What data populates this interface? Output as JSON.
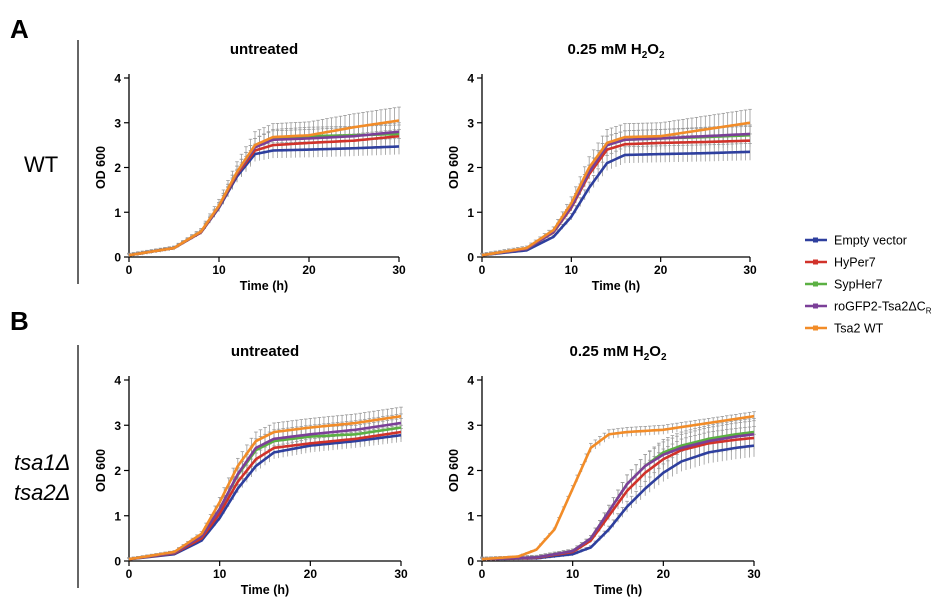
{
  "panel_labels": [
    "A",
    "B"
  ],
  "row_labels": {
    "wt": "WT",
    "tsa_line1": "tsa1Δ",
    "tsa_line2": "tsa2Δ"
  },
  "legend": [
    {
      "label": "Empty vector",
      "color": "#2e3f9e"
    },
    {
      "label": "HyPer7",
      "color": "#d1322a"
    },
    {
      "label": "SypHer7",
      "color": "#5bb043"
    },
    {
      "label": "roGFP2-Tsa2ΔC",
      "sub": "R",
      "color": "#7b3f98"
    },
    {
      "label": "Tsa2 WT",
      "color": "#f28c28"
    }
  ],
  "chart_data": [
    {
      "type": "line",
      "panel": "A",
      "title": "untreated",
      "xlabel": "Time (h)",
      "ylabel": "OD 600",
      "xlim": [
        0,
        30
      ],
      "ylim": [
        0,
        4
      ],
      "xticks": [
        0,
        10,
        20,
        30
      ],
      "yticks": [
        0,
        1,
        2,
        3,
        4
      ],
      "error_bars": true,
      "series": [
        {
          "name": "Empty vector",
          "points": [
            [
              0,
              0.04
            ],
            [
              5,
              0.2
            ],
            [
              8,
              0.55
            ],
            [
              10,
              1.1
            ],
            [
              12,
              1.8
            ],
            [
              14,
              2.3
            ],
            [
              16,
              2.38
            ],
            [
              20,
              2.4
            ],
            [
              25,
              2.43
            ],
            [
              30,
              2.47
            ]
          ],
          "err": 0.18
        },
        {
          "name": "HyPer7",
          "points": [
            [
              0,
              0.04
            ],
            [
              5,
              0.2
            ],
            [
              8,
              0.55
            ],
            [
              10,
              1.12
            ],
            [
              12,
              1.85
            ],
            [
              14,
              2.38
            ],
            [
              16,
              2.5
            ],
            [
              20,
              2.55
            ],
            [
              25,
              2.6
            ],
            [
              30,
              2.7
            ]
          ],
          "err": 0.15
        },
        {
          "name": "SypHer7",
          "points": [
            [
              0,
              0.04
            ],
            [
              5,
              0.2
            ],
            [
              8,
              0.56
            ],
            [
              10,
              1.13
            ],
            [
              12,
              1.88
            ],
            [
              14,
              2.45
            ],
            [
              16,
              2.65
            ],
            [
              20,
              2.7
            ],
            [
              25,
              2.72
            ],
            [
              30,
              2.75
            ]
          ],
          "err": 0.2
        },
        {
          "name": "roGFP2-Tsa2ΔCR",
          "points": [
            [
              0,
              0.04
            ],
            [
              5,
              0.2
            ],
            [
              8,
              0.56
            ],
            [
              10,
              1.13
            ],
            [
              12,
              1.88
            ],
            [
              14,
              2.45
            ],
            [
              16,
              2.62
            ],
            [
              20,
              2.65
            ],
            [
              25,
              2.7
            ],
            [
              30,
              2.8
            ]
          ],
          "err": 0.2
        },
        {
          "name": "Tsa2 WT",
          "points": [
            [
              0,
              0.04
            ],
            [
              5,
              0.2
            ],
            [
              8,
              0.57
            ],
            [
              10,
              1.15
            ],
            [
              12,
              1.9
            ],
            [
              14,
              2.5
            ],
            [
              16,
              2.68
            ],
            [
              20,
              2.72
            ],
            [
              25,
              2.9
            ],
            [
              30,
              3.05
            ]
          ],
          "err": 0.3
        }
      ]
    },
    {
      "type": "line",
      "panel": "A",
      "title": "0.25 mM H2O2",
      "title_parts": {
        "main": "0.25 mM H",
        "sub1": "2",
        "mid": "O",
        "sub2": "2"
      },
      "xlabel": "Time (h)",
      "ylabel": "OD 600",
      "xlim": [
        0,
        30
      ],
      "ylim": [
        0,
        4
      ],
      "xticks": [
        0,
        10,
        20,
        30
      ],
      "yticks": [
        0,
        1,
        2,
        3,
        4
      ],
      "error_bars": true,
      "series": [
        {
          "name": "Empty vector",
          "points": [
            [
              0,
              0.04
            ],
            [
              5,
              0.15
            ],
            [
              8,
              0.45
            ],
            [
              10,
              0.9
            ],
            [
              12,
              1.55
            ],
            [
              14,
              2.1
            ],
            [
              16,
              2.28
            ],
            [
              20,
              2.3
            ],
            [
              25,
              2.32
            ],
            [
              30,
              2.35
            ]
          ],
          "err": 0.2
        },
        {
          "name": "HyPer7",
          "points": [
            [
              0,
              0.04
            ],
            [
              5,
              0.18
            ],
            [
              8,
              0.55
            ],
            [
              10,
              1.1
            ],
            [
              12,
              1.85
            ],
            [
              14,
              2.4
            ],
            [
              16,
              2.52
            ],
            [
              20,
              2.55
            ],
            [
              25,
              2.57
            ],
            [
              30,
              2.6
            ]
          ],
          "err": 0.15
        },
        {
          "name": "SypHer7",
          "points": [
            [
              0,
              0.04
            ],
            [
              5,
              0.18
            ],
            [
              8,
              0.56
            ],
            [
              10,
              1.12
            ],
            [
              12,
              1.9
            ],
            [
              14,
              2.5
            ],
            [
              16,
              2.62
            ],
            [
              20,
              2.65
            ],
            [
              25,
              2.68
            ],
            [
              30,
              2.72
            ]
          ],
          "err": 0.2
        },
        {
          "name": "roGFP2-Tsa2ΔCR",
          "points": [
            [
              0,
              0.04
            ],
            [
              5,
              0.18
            ],
            [
              8,
              0.56
            ],
            [
              10,
              1.12
            ],
            [
              12,
              1.9
            ],
            [
              14,
              2.5
            ],
            [
              16,
              2.62
            ],
            [
              20,
              2.65
            ],
            [
              25,
              2.7
            ],
            [
              30,
              2.75
            ]
          ],
          "err": 0.2
        },
        {
          "name": "Tsa2 WT",
          "points": [
            [
              0,
              0.04
            ],
            [
              5,
              0.2
            ],
            [
              8,
              0.6
            ],
            [
              10,
              1.2
            ],
            [
              12,
              2.0
            ],
            [
              14,
              2.55
            ],
            [
              16,
              2.68
            ],
            [
              20,
              2.7
            ],
            [
              25,
              2.85
            ],
            [
              30,
              3.0
            ]
          ],
          "err": 0.3
        }
      ]
    },
    {
      "type": "line",
      "panel": "B",
      "title": "untreated",
      "xlabel": "Time (h)",
      "ylabel": "OD 600",
      "xlim": [
        0,
        30
      ],
      "ylim": [
        0,
        4
      ],
      "xticks": [
        0,
        10,
        20,
        30
      ],
      "yticks": [
        0,
        1,
        2,
        3,
        4
      ],
      "error_bars": true,
      "series": [
        {
          "name": "Empty vector",
          "points": [
            [
              0,
              0.04
            ],
            [
              5,
              0.15
            ],
            [
              8,
              0.45
            ],
            [
              10,
              0.95
            ],
            [
              12,
              1.6
            ],
            [
              14,
              2.1
            ],
            [
              16,
              2.4
            ],
            [
              20,
              2.55
            ],
            [
              25,
              2.65
            ],
            [
              30,
              2.78
            ]
          ],
          "err": 0.15
        },
        {
          "name": "HyPer7",
          "points": [
            [
              0,
              0.04
            ],
            [
              5,
              0.17
            ],
            [
              8,
              0.5
            ],
            [
              10,
              1.05
            ],
            [
              12,
              1.75
            ],
            [
              14,
              2.25
            ],
            [
              16,
              2.5
            ],
            [
              20,
              2.6
            ],
            [
              25,
              2.7
            ],
            [
              30,
              2.85
            ]
          ],
          "err": 0.15
        },
        {
          "name": "SypHer7",
          "points": [
            [
              0,
              0.04
            ],
            [
              5,
              0.18
            ],
            [
              8,
              0.55
            ],
            [
              10,
              1.15
            ],
            [
              12,
              1.9
            ],
            [
              14,
              2.45
            ],
            [
              16,
              2.65
            ],
            [
              20,
              2.75
            ],
            [
              25,
              2.8
            ],
            [
              30,
              2.95
            ]
          ],
          "err": 0.2
        },
        {
          "name": "roGFP2-Tsa2ΔCR",
          "points": [
            [
              0,
              0.04
            ],
            [
              5,
              0.18
            ],
            [
              8,
              0.55
            ],
            [
              10,
              1.15
            ],
            [
              12,
              1.92
            ],
            [
              14,
              2.5
            ],
            [
              16,
              2.7
            ],
            [
              20,
              2.8
            ],
            [
              25,
              2.9
            ],
            [
              30,
              3.05
            ]
          ],
          "err": 0.2
        },
        {
          "name": "Tsa2 WT",
          "points": [
            [
              0,
              0.04
            ],
            [
              5,
              0.2
            ],
            [
              8,
              0.6
            ],
            [
              10,
              1.3
            ],
            [
              12,
              2.1
            ],
            [
              14,
              2.65
            ],
            [
              16,
              2.85
            ],
            [
              20,
              2.95
            ],
            [
              25,
              3.05
            ],
            [
              30,
              3.2
            ]
          ],
          "err": 0.2
        }
      ]
    },
    {
      "type": "line",
      "panel": "B",
      "title": "0.25 mM H2O2",
      "title_parts": {
        "main": "0.25 mM H",
        "sub1": "2",
        "mid": "O",
        "sub2": "2"
      },
      "xlabel": "Time (h)",
      "ylabel": "OD 600",
      "xlim": [
        0,
        30
      ],
      "ylim": [
        0,
        4
      ],
      "xticks": [
        0,
        10,
        20,
        30
      ],
      "yticks": [
        0,
        1,
        2,
        3,
        4
      ],
      "error_bars": true,
      "series": [
        {
          "name": "Empty vector",
          "points": [
            [
              0,
              0.04
            ],
            [
              6,
              0.06
            ],
            [
              10,
              0.15
            ],
            [
              12,
              0.3
            ],
            [
              14,
              0.7
            ],
            [
              16,
              1.2
            ],
            [
              18,
              1.6
            ],
            [
              20,
              1.95
            ],
            [
              22,
              2.2
            ],
            [
              25,
              2.4
            ],
            [
              28,
              2.5
            ],
            [
              30,
              2.55
            ]
          ],
          "err": 0.25
        },
        {
          "name": "HyPer7",
          "points": [
            [
              0,
              0.04
            ],
            [
              6,
              0.07
            ],
            [
              10,
              0.2
            ],
            [
              12,
              0.45
            ],
            [
              14,
              1.0
            ],
            [
              16,
              1.55
            ],
            [
              18,
              1.95
            ],
            [
              20,
              2.25
            ],
            [
              22,
              2.45
            ],
            [
              25,
              2.6
            ],
            [
              28,
              2.68
            ],
            [
              30,
              2.72
            ]
          ],
          "err": 0.25
        },
        {
          "name": "SypHer7",
          "points": [
            [
              0,
              0.04
            ],
            [
              6,
              0.08
            ],
            [
              10,
              0.22
            ],
            [
              12,
              0.5
            ],
            [
              14,
              1.1
            ],
            [
              16,
              1.7
            ],
            [
              18,
              2.1
            ],
            [
              20,
              2.4
            ],
            [
              22,
              2.55
            ],
            [
              25,
              2.7
            ],
            [
              28,
              2.8
            ],
            [
              30,
              2.85
            ]
          ],
          "err": 0.3
        },
        {
          "name": "roGFP2-Tsa2ΔCR",
          "points": [
            [
              0,
              0.04
            ],
            [
              6,
              0.08
            ],
            [
              10,
              0.22
            ],
            [
              12,
              0.5
            ],
            [
              14,
              1.1
            ],
            [
              16,
              1.7
            ],
            [
              18,
              2.1
            ],
            [
              20,
              2.35
            ],
            [
              22,
              2.5
            ],
            [
              25,
              2.65
            ],
            [
              28,
              2.75
            ],
            [
              30,
              2.8
            ]
          ],
          "err": 0.3
        },
        {
          "name": "Tsa2 WT",
          "points": [
            [
              0,
              0.04
            ],
            [
              4,
              0.1
            ],
            [
              6,
              0.25
            ],
            [
              8,
              0.7
            ],
            [
              10,
              1.6
            ],
            [
              12,
              2.5
            ],
            [
              14,
              2.8
            ],
            [
              16,
              2.85
            ],
            [
              20,
              2.9
            ],
            [
              25,
              3.05
            ],
            [
              30,
              3.2
            ]
          ],
          "err": 0.1
        }
      ]
    }
  ]
}
